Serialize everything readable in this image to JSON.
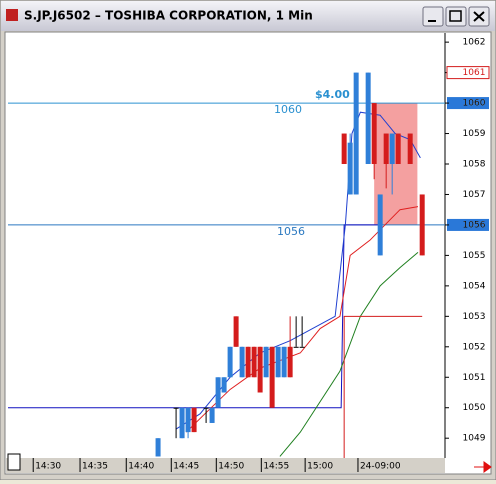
{
  "window_title": "S.JP.J6502 – TOSHIBA CORPORATION, 1 Min",
  "chart_data": {
    "type": "candlestick",
    "xlim": [
      -25,
      47.8
    ],
    "ylim": [
      1048.35,
      1062.3
    ],
    "yticks": [
      1049,
      1050,
      1051,
      1052,
      1053,
      1054,
      1055,
      1056,
      1057,
      1058,
      1059,
      1060,
      1061,
      1062
    ],
    "xticks": [
      {
        "value": -18.3,
        "label": "14:30"
      },
      {
        "value": -10.5,
        "label": "14:35"
      },
      {
        "value": -2.8,
        "label": "14:40"
      },
      {
        "value": 4.7,
        "label": "14:45"
      },
      {
        "value": 12.2,
        "label": "14:50"
      },
      {
        "value": 19.7,
        "label": "14:55"
      },
      {
        "value": 27,
        "label": "15:00"
      },
      {
        "value": 35.8,
        "label": "24-09:00"
      }
    ],
    "candles": {
      "x": [
        0,
        3,
        4,
        5,
        6,
        8,
        9,
        10,
        11,
        12,
        13,
        14,
        15,
        16,
        17,
        18,
        19,
        20,
        21,
        22,
        23,
        24,
        31,
        32,
        33,
        35,
        36,
        37,
        38,
        39,
        40,
        42,
        44
      ],
      "open": [
        1048.4,
        1050,
        1049,
        1049.2,
        1050,
        1050,
        1049.5,
        1050,
        1050.5,
        1051,
        1053,
        1051,
        1052,
        1052,
        1052,
        1051,
        1052,
        1051,
        1051,
        1052,
        1052,
        1052,
        1059,
        1057,
        1057,
        1058,
        1060,
        1055,
        1059,
        1058,
        1059,
        1059,
        1057
      ],
      "high": [
        1049,
        1050,
        1050,
        1050,
        1050,
        1050,
        1050,
        1051,
        1051,
        1052,
        1053,
        1052,
        1052,
        1052,
        1052,
        1052,
        1052,
        1052,
        1052,
        1053,
        1053,
        1053,
        1059,
        1059,
        1061,
        1061,
        1060,
        1057,
        1059,
        1059,
        1059,
        1059,
        1057
      ],
      "low": [
        1048.4,
        1049,
        1049,
        1049,
        1049.2,
        1049.5,
        1049.5,
        1050,
        1050.5,
        1051,
        1052,
        1051,
        1051,
        1051,
        1050.5,
        1051,
        1050,
        1051,
        1051,
        1051,
        1052,
        1052,
        1058,
        1057,
        1057,
        1058,
        1057.5,
        1055,
        1057.2,
        1057,
        1058,
        1058,
        1055
      ],
      "close": [
        1049,
        1050,
        1050,
        1050,
        1049.2,
        1050,
        1050,
        1051,
        1051,
        1052,
        1052,
        1052,
        1051,
        1051,
        1050.5,
        1052,
        1050,
        1052,
        1052,
        1051,
        1052,
        1052,
        1058,
        1058.7,
        1061,
        1061,
        1058,
        1057,
        1058,
        1059,
        1058,
        1058,
        1055
      ]
    },
    "up_color": "#2f7fd8",
    "down_color": "#d41c1c",
    "series": [
      {
        "color": "#1010c0",
        "x": [
          -25,
          30.5,
          31,
          37
        ],
        "values": [
          1050,
          1050,
          1056,
          1056
        ]
      },
      {
        "color": "#2040d0",
        "x": [
          3,
          7,
          12,
          17,
          22,
          29.5,
          31.2,
          32.3,
          33.7,
          37,
          39.5,
          42,
          43.7
        ],
        "values": [
          1049.3,
          1049.8,
          1051,
          1051.8,
          1052.2,
          1053,
          1056,
          1059,
          1059.7,
          1059.6,
          1059,
          1058.8,
          1058.2
        ]
      },
      {
        "color": "#e02020",
        "x": [
          4.7,
          7.8,
          12,
          17,
          23.7,
          27,
          30.3,
          32,
          35.3,
          40.3,
          43.3
        ],
        "values": [
          1049.2,
          1049.8,
          1050.6,
          1051.3,
          1051.8,
          1052.6,
          1053,
          1055,
          1055.5,
          1056.5,
          1056.6
        ]
      },
      {
        "color": "#208020",
        "x": [
          20.3,
          23.7,
          30.3,
          33.7,
          37,
          40.3,
          43.3
        ],
        "values": [
          1048.4,
          1049.2,
          1051.2,
          1053,
          1054,
          1054.6,
          1055.1
        ]
      },
      {
        "color": "#d41c1c",
        "x": [
          31,
          31,
          44
        ],
        "values": [
          1048.35,
          1053,
          1053
        ]
      }
    ],
    "hlines": [
      {
        "value": 1060,
        "color": "#2a90d0"
      },
      {
        "value": 1056,
        "color": "#2a78c0"
      }
    ],
    "zone": {
      "x": [
        36,
        43.2
      ],
      "y": [
        1056,
        1060
      ],
      "color": "#f07878"
    },
    "price_marker": 1061,
    "annotation": "$4.00"
  }
}
